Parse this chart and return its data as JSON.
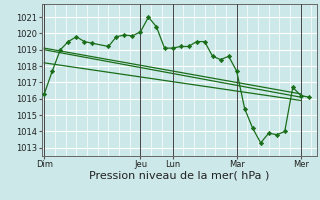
{
  "bg_color": "#cce8e8",
  "grid_color": "#ffffff",
  "line_color": "#1a6e1a",
  "marker_color": "#1a6e1a",
  "ylabel_ticks": [
    1013,
    1014,
    1015,
    1016,
    1017,
    1018,
    1019,
    1020,
    1021
  ],
  "ylim": [
    1012.5,
    1021.8
  ],
  "xlabel": "Pression niveau de la mer( hPa )",
  "day_labels": [
    "Dim",
    "Jeu",
    "Lun",
    "Mar",
    "Mer"
  ],
  "day_positions": [
    0,
    36,
    48,
    72,
    96
  ],
  "xlim": [
    -1,
    102
  ],
  "series1_x": [
    0,
    3,
    6,
    9,
    12,
    15,
    18,
    24,
    27,
    30,
    33,
    36,
    39,
    42,
    45,
    48,
    51,
    54,
    57,
    60,
    63,
    66,
    69,
    72,
    75,
    78,
    81,
    84,
    87,
    90,
    93,
    96,
    99
  ],
  "series1_y": [
    1016.3,
    1017.7,
    1019.0,
    1019.5,
    1019.8,
    1019.5,
    1019.4,
    1019.2,
    1019.8,
    1019.9,
    1019.85,
    1020.1,
    1021.0,
    1020.4,
    1019.1,
    1019.1,
    1019.2,
    1019.2,
    1019.5,
    1019.5,
    1018.6,
    1018.4,
    1018.6,
    1017.7,
    1015.4,
    1014.2,
    1013.3,
    1013.9,
    1013.8,
    1014.0,
    1016.7,
    1016.2,
    1016.1
  ],
  "series2_x": [
    0,
    96
  ],
  "series2_y": [
    1019.0,
    1016.1
  ],
  "series3_x": [
    0,
    96
  ],
  "series3_y": [
    1019.1,
    1016.3
  ],
  "series4_x": [
    0,
    96
  ],
  "series4_y": [
    1018.2,
    1015.9
  ],
  "vline_color": "#444444",
  "tick_fontsize": 6,
  "xlabel_fontsize": 8
}
